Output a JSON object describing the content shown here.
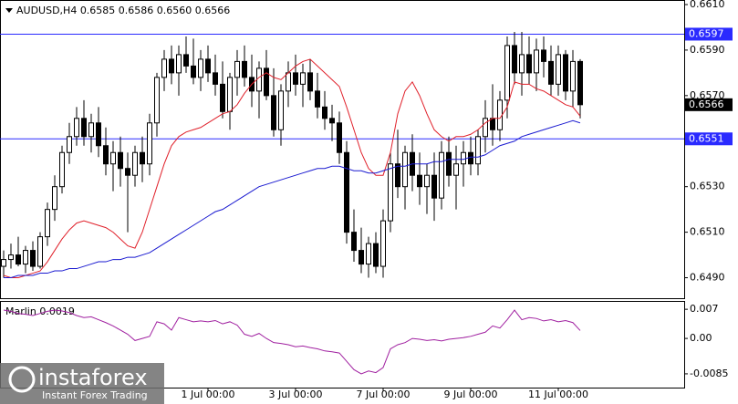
{
  "header": "AUDUSD,H4  0.6585 0.6586 0.6560 0.6566",
  "watermark": {
    "brand": "instaforex",
    "tagline": "Instant Forex Trading"
  },
  "chart_data": [
    {
      "type": "candlestick",
      "categories": [
        null,
        null,
        null,
        null,
        null,
        null,
        null,
        null,
        null,
        null,
        null,
        null,
        null,
        null,
        null,
        null,
        null,
        null,
        null,
        null,
        null,
        null,
        null,
        null,
        null,
        null,
        null,
        null,
        "1 Jul 00:00",
        null,
        null,
        null,
        null,
        null,
        null,
        null,
        null,
        null,
        null,
        null,
        "3 Jul 00:00",
        null,
        null,
        null,
        null,
        null,
        null,
        null,
        null,
        null,
        null,
        null,
        "7 Jul 00:00",
        null,
        null,
        null,
        null,
        null,
        null,
        null,
        null,
        null,
        null,
        null,
        "9 Jul 00:00",
        null,
        null,
        null,
        null,
        null,
        null,
        null,
        null,
        null,
        null,
        null,
        "11 Jul 00:00",
        null,
        null,
        null
      ],
      "open": [
        0.6495,
        0.6498,
        0.65,
        0.6496,
        0.6502,
        0.6495,
        0.6508,
        0.652,
        0.653,
        0.6545,
        0.6552,
        0.656,
        0.6552,
        0.6558,
        0.6548,
        0.654,
        0.6545,
        0.6538,
        0.6535,
        0.6545,
        0.654,
        0.6558,
        0.6578,
        0.6586,
        0.658,
        0.6588,
        0.6583,
        0.6578,
        0.6586,
        0.658,
        0.6575,
        0.6563,
        0.6578,
        0.6585,
        0.6578,
        0.6572,
        0.6582,
        0.657,
        0.6555,
        0.6572,
        0.658,
        0.6575,
        0.658,
        0.6572,
        0.6565,
        0.656,
        0.6558,
        0.6545,
        0.651,
        0.6502,
        0.6496,
        0.6505,
        0.6495,
        0.6515,
        0.654,
        0.653,
        0.6545,
        0.6535,
        0.653,
        0.6535,
        0.6525,
        0.6545,
        0.6535,
        0.654,
        0.6545,
        0.654,
        0.6552,
        0.656,
        0.6555,
        0.6568,
        0.6592,
        0.658,
        0.6588,
        0.658,
        0.659,
        0.6585,
        0.6575,
        0.6588,
        0.6572,
        0.6585
      ],
      "high": [
        0.6502,
        0.6505,
        0.6508,
        0.6504,
        0.6506,
        0.651,
        0.6523,
        0.6535,
        0.6548,
        0.6558,
        0.6565,
        0.6568,
        0.6562,
        0.6565,
        0.6556,
        0.655,
        0.6552,
        0.6545,
        0.6548,
        0.6552,
        0.6562,
        0.658,
        0.659,
        0.6592,
        0.6592,
        0.6596,
        0.6595,
        0.659,
        0.6592,
        0.6588,
        0.6585,
        0.658,
        0.659,
        0.6592,
        0.6588,
        0.6585,
        0.659,
        0.6582,
        0.6575,
        0.6585,
        0.6588,
        0.6584,
        0.6586,
        0.658,
        0.6572,
        0.6566,
        0.6563,
        0.655,
        0.652,
        0.6512,
        0.6508,
        0.651,
        0.652,
        0.6545,
        0.6555,
        0.6548,
        0.6553,
        0.6545,
        0.654,
        0.6545,
        0.655,
        0.6552,
        0.6548,
        0.655,
        0.6552,
        0.6555,
        0.6568,
        0.6575,
        0.6572,
        0.6596,
        0.6598,
        0.6598,
        0.6596,
        0.6595,
        0.6596,
        0.6592,
        0.6592,
        0.659,
        0.659,
        0.6586
      ],
      "low": [
        0.649,
        0.6494,
        0.6495,
        0.6492,
        0.6493,
        0.6494,
        0.6504,
        0.6515,
        0.6527,
        0.654,
        0.6548,
        0.6548,
        0.6545,
        0.6543,
        0.6535,
        0.6528,
        0.653,
        0.651,
        0.653,
        0.6532,
        0.6535,
        0.6552,
        0.6572,
        0.6575,
        0.657,
        0.658,
        0.6575,
        0.6572,
        0.6576,
        0.657,
        0.656,
        0.6555,
        0.657,
        0.6574,
        0.6565,
        0.656,
        0.6568,
        0.6552,
        0.6548,
        0.6565,
        0.657,
        0.6565,
        0.6568,
        0.656,
        0.6555,
        0.655,
        0.654,
        0.6505,
        0.6497,
        0.6492,
        0.649,
        0.6492,
        0.649,
        0.651,
        0.6525,
        0.652,
        0.6528,
        0.6522,
        0.6518,
        0.6515,
        0.652,
        0.653,
        0.652,
        0.653,
        0.6535,
        0.6535,
        0.6545,
        0.6548,
        0.655,
        0.656,
        0.6575,
        0.657,
        0.6575,
        0.6572,
        0.6578,
        0.657,
        0.657,
        0.6568,
        0.6565,
        0.656
      ],
      "close": [
        0.6498,
        0.65,
        0.6496,
        0.6502,
        0.6495,
        0.6508,
        0.652,
        0.653,
        0.6545,
        0.6552,
        0.656,
        0.6552,
        0.6558,
        0.6548,
        0.654,
        0.6545,
        0.6538,
        0.6535,
        0.6545,
        0.654,
        0.6558,
        0.6578,
        0.6586,
        0.658,
        0.6588,
        0.6583,
        0.6578,
        0.6586,
        0.658,
        0.6575,
        0.6563,
        0.6578,
        0.6585,
        0.6578,
        0.6572,
        0.6582,
        0.657,
        0.6555,
        0.6572,
        0.658,
        0.6575,
        0.658,
        0.6572,
        0.6565,
        0.656,
        0.6558,
        0.6545,
        0.651,
        0.6502,
        0.6496,
        0.6505,
        0.6495,
        0.6515,
        0.654,
        0.653,
        0.6545,
        0.6535,
        0.653,
        0.6535,
        0.6525,
        0.6545,
        0.6535,
        0.654,
        0.6545,
        0.654,
        0.6552,
        0.656,
        0.6555,
        0.6568,
        0.6592,
        0.658,
        0.6588,
        0.658,
        0.659,
        0.6585,
        0.6575,
        0.6588,
        0.6572,
        0.6585,
        0.6566
      ],
      "up_color": "#ffffff",
      "down_color": "#000000",
      "wick_color": "#000000",
      "lines": [
        {
          "color": "#e0202a",
          "values": [
            0.6491,
            0.649,
            0.649,
            0.6491,
            0.6492,
            0.6493,
            0.6497,
            0.6502,
            0.6507,
            0.6511,
            0.6514,
            0.6515,
            0.6514,
            0.6513,
            0.6512,
            0.651,
            0.6507,
            0.6504,
            0.6503,
            0.651,
            0.652,
            0.653,
            0.654,
            0.6548,
            0.6552,
            0.6554,
            0.6555,
            0.6556,
            0.6558,
            0.656,
            0.6562,
            0.6563,
            0.6566,
            0.6571,
            0.6575,
            0.6578,
            0.658,
            0.6578,
            0.6577,
            0.658,
            0.6583,
            0.6585,
            0.6586,
            0.6583,
            0.658,
            0.6577,
            0.6574,
            0.6565,
            0.6555,
            0.6545,
            0.6538,
            0.6535,
            0.6535,
            0.6545,
            0.6562,
            0.6572,
            0.6576,
            0.657,
            0.6562,
            0.6555,
            0.6552,
            0.655,
            0.6552,
            0.6552,
            0.6553,
            0.6555,
            0.6558,
            0.656,
            0.656,
            0.6565,
            0.6576,
            0.6575,
            0.6575,
            0.6573,
            0.6572,
            0.657,
            0.6568,
            0.6566,
            0.6565,
            0.6561
          ]
        },
        {
          "color": "#1a1ad0",
          "values": [
            0.649,
            0.649,
            0.6491,
            0.6491,
            0.6491,
            0.6492,
            0.6492,
            0.6493,
            0.6493,
            0.6494,
            0.6494,
            0.6495,
            0.6496,
            0.6497,
            0.6497,
            0.6498,
            0.6498,
            0.6499,
            0.6499,
            0.65,
            0.6501,
            0.6503,
            0.6505,
            0.6507,
            0.6509,
            0.6511,
            0.6513,
            0.6515,
            0.6517,
            0.6519,
            0.652,
            0.6522,
            0.6524,
            0.6526,
            0.6528,
            0.653,
            0.6531,
            0.6532,
            0.6533,
            0.6534,
            0.6535,
            0.6536,
            0.6537,
            0.6538,
            0.6538,
            0.6539,
            0.6539,
            0.6538,
            0.6537,
            0.6537,
            0.6536,
            0.6536,
            0.6537,
            0.6538,
            0.6539,
            0.6539,
            0.654,
            0.654,
            0.654,
            0.6541,
            0.6541,
            0.6542,
            0.6542,
            0.6542,
            0.6543,
            0.6543,
            0.6544,
            0.6546,
            0.6548,
            0.6549,
            0.655,
            0.6552,
            0.6553,
            0.6554,
            0.6555,
            0.6556,
            0.6557,
            0.6558,
            0.6559,
            0.6558
          ]
        }
      ],
      "levels": [
        {
          "value": 0.6597,
          "label": "0.6597"
        },
        {
          "value": 0.6551,
          "label": "0.6551"
        }
      ],
      "level_color": "#2a2aff",
      "last_price": {
        "value": 0.6566,
        "label": "0.6566"
      },
      "ylim": [
        0.6481,
        0.6612
      ],
      "yticks": [
        {
          "value": 0.661,
          "label": "0.6610"
        },
        {
          "value": 0.659,
          "label": "0.6590"
        },
        {
          "value": 0.657,
          "label": "0.6570"
        },
        {
          "value": 0.653,
          "label": "0.6530"
        },
        {
          "value": 0.651,
          "label": "0.6510"
        },
        {
          "value": 0.649,
          "label": "0.6490"
        }
      ]
    },
    {
      "type": "line",
      "title": "Marlin 0.0019",
      "color": "#a020a0",
      "values": [
        0.0068,
        0.0065,
        0.006,
        0.0058,
        0.0055,
        0.006,
        0.0065,
        0.0068,
        0.0066,
        0.0062,
        0.0055,
        0.005,
        0.0052,
        0.0045,
        0.0038,
        0.003,
        0.002,
        0.001,
        -0.0005,
        0,
        0.0005,
        0.004,
        0.0035,
        0.002,
        0.005,
        0.0045,
        0.004,
        0.0042,
        0.004,
        0.0043,
        0.0035,
        0.004,
        0.0032,
        0.001,
        0.0005,
        0.0012,
        0,
        -0.001,
        -0.0012,
        -0.0015,
        -0.002,
        -0.0018,
        -0.0022,
        -0.0025,
        -0.003,
        -0.0032,
        -0.0035,
        -0.0055,
        -0.0075,
        -0.0085,
        -0.0078,
        -0.0082,
        -0.007,
        -0.0025,
        -0.0015,
        -0.001,
        0,
        -0.0002,
        -0.0005,
        -0.0003,
        -0.0006,
        -0.0002,
        0,
        0.0002,
        0.0005,
        0.001,
        0.0015,
        0.003,
        0.0025,
        0.0045,
        0.0068,
        0.0045,
        0.005,
        0.0048,
        0.0042,
        0.0045,
        0.004,
        0.0043,
        0.0038,
        0.0019
      ],
      "ylim": [
        -0.0118,
        0.009
      ],
      "yticks": [
        0.007,
        {
          "value": 0,
          "label": "0.00"
        },
        -0.0085
      ]
    }
  ]
}
